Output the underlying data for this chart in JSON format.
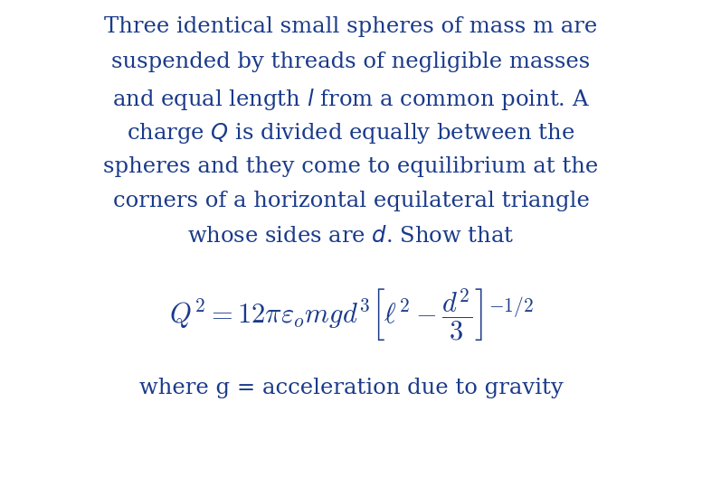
{
  "background_color": "#ffffff",
  "text_color": "#1a3a8a",
  "paragraph_lines": [
    "Three identical small spheres of mass m are",
    "suspended by threads of negligible masses",
    "and equal length $\\mathit{l}$ from a common point. A",
    "charge $\\mathit{Q}$ is divided equally between the",
    "spheres and they come to equilibrium at the",
    "corners of a horizontal equilateral triangle",
    "whose sides are $\\mathit{d}$. Show that"
  ],
  "formula": "$Q^2 = 12\\pi\\varepsilon_o mgd^3\\left[\\ell^2 - \\dfrac{d^2}{3}\\right]^{-1/2}$",
  "footer": "where g = acceleration due to gravity",
  "paragraph_fontsize": 17.5,
  "formula_fontsize": 22,
  "footer_fontsize": 17.5,
  "figsize": [
    7.76,
    5.28
  ],
  "dpi": 100
}
